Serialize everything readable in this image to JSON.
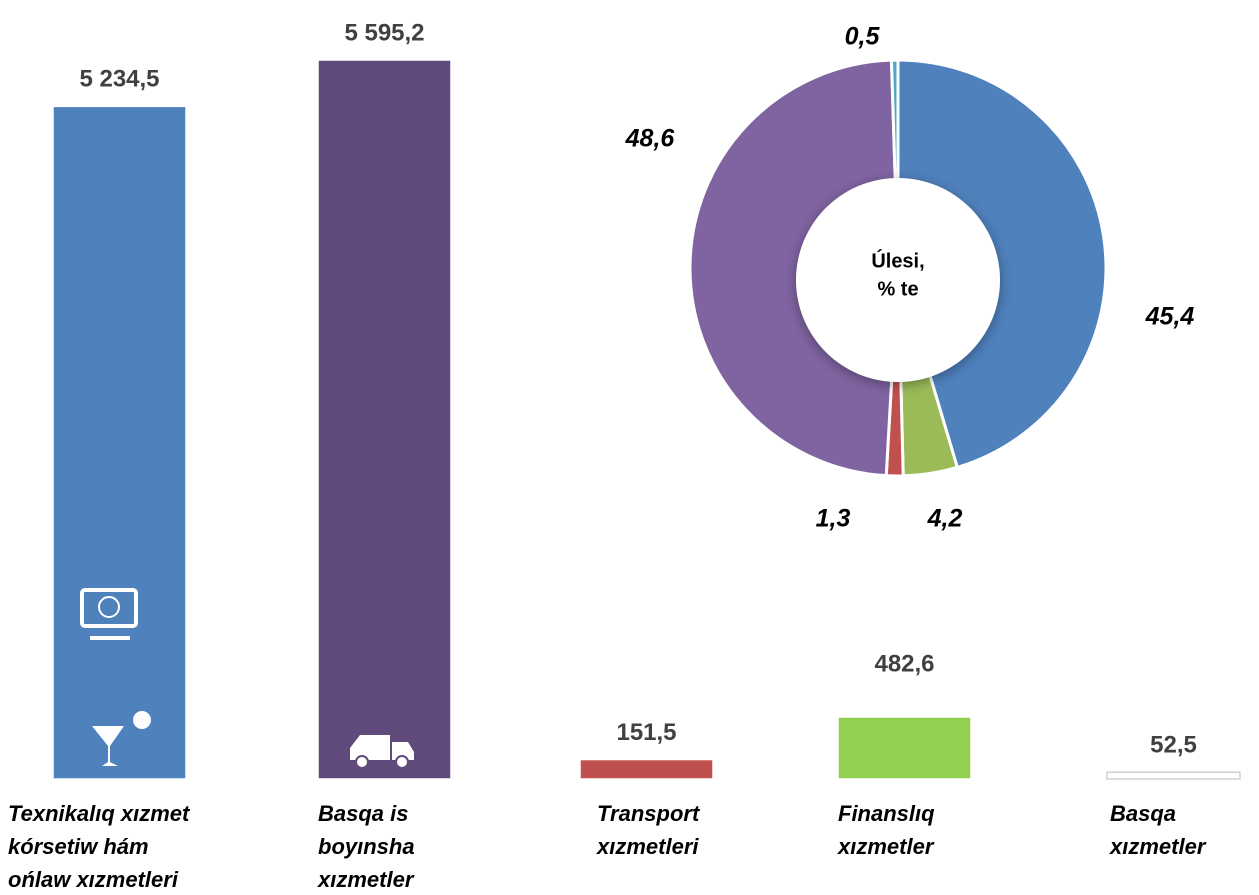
{
  "chart_data": [
    {
      "type": "bar",
      "categories": [
        [
          "Texnikalıq xızmet",
          "kórsetiw hám",
          "ońlaw xızmetleri"
        ],
        [
          "Basqa is",
          "boyınsha",
          "xızmetler"
        ],
        [
          "Transport",
          "xızmetleri"
        ],
        [
          "Finanslıq",
          "xızmetler"
        ],
        [
          "Basqa",
          "xızmetler"
        ]
      ],
      "values": [
        5234.5,
        5595.2,
        151.5,
        482.6,
        52.5
      ],
      "value_labels": [
        "5 234,5",
        "5 595,2",
        "151,5",
        "482,6",
        "52,5"
      ],
      "colors": [
        "#4f81bd",
        "#604a7b",
        "#c0504d",
        "#92d050",
        "#ffffff"
      ]
    },
    {
      "type": "pie",
      "center_text": [
        "Úlesi,",
        "% te"
      ],
      "values": [
        45.4,
        4.2,
        1.3,
        48.6,
        0.5
      ],
      "value_labels": [
        "45,4",
        "4,2",
        "1,3",
        "48,6",
        "0,5"
      ],
      "colors": [
        "#4f81bd",
        "#9bbb59",
        "#c0504d",
        "#8064a2",
        "#4bacc6"
      ]
    }
  ]
}
